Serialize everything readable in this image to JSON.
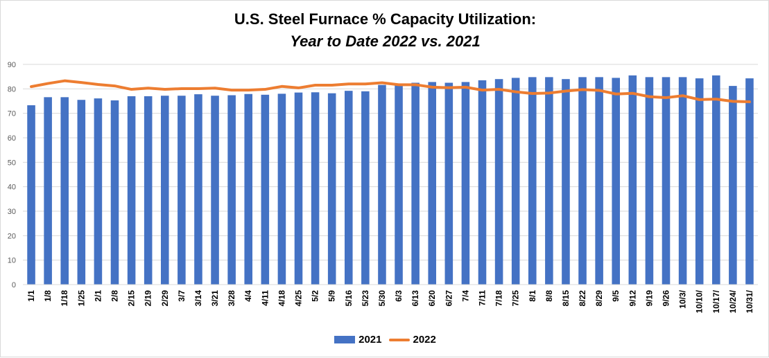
{
  "chart_data": {
    "type": "bar",
    "title": "U.S. Steel Furnace % Capacity Utilization:",
    "subtitle": "Year to Date 2022 vs. 2021",
    "xlabel": "",
    "ylabel": "",
    "ylim": [
      0,
      90
    ],
    "yticks": [
      "0",
      "10",
      "20",
      "30",
      "40",
      "50",
      "60",
      "70",
      "80",
      "90"
    ],
    "grid": true,
    "legend_position": "bottom",
    "categories": [
      "1/1",
      "1/8",
      "1/18",
      "1/25",
      "2/1",
      "2/8",
      "2/15",
      "2/19",
      "2/29",
      "3/7",
      "3/14",
      "3/21",
      "3/28",
      "4/4",
      "4/11",
      "4/18",
      "4/25",
      "5/2",
      "5/9",
      "5/16",
      "5/23",
      "5/30",
      "6/3",
      "6/13",
      "6/20",
      "6/27",
      "7/4",
      "7/11",
      "7/18",
      "7/25",
      "8/1",
      "8/8",
      "8/15",
      "8/22",
      "8/29",
      "9/5",
      "9/12",
      "9/19",
      "9/26",
      "10/3/",
      "10/10/",
      "10/17/",
      "10/24/",
      "10/31/"
    ],
    "series": [
      {
        "name": "2021",
        "type": "bar",
        "color": "#4472C4",
        "values": [
          73.3,
          76.6,
          76.6,
          75.5,
          76.1,
          75.3,
          77.0,
          77.0,
          77.2,
          77.2,
          77.8,
          77.2,
          77.4,
          77.9,
          77.6,
          78.0,
          78.5,
          78.6,
          78.2,
          79.2,
          79.0,
          81.6,
          81.6,
          82.5,
          82.8,
          82.5,
          82.8,
          83.5,
          84.0,
          84.5,
          84.8,
          84.8,
          84.0,
          84.8,
          84.8,
          84.5,
          85.5,
          84.8,
          84.8,
          84.8,
          84.3,
          85.5,
          81.2,
          84.3
        ]
      },
      {
        "name": "2022",
        "type": "line",
        "color": "#ED7D31",
        "values": [
          80.9,
          82.2,
          83.3,
          82.6,
          81.8,
          81.2,
          79.8,
          80.3,
          79.8,
          80.1,
          80.1,
          80.3,
          79.5,
          79.5,
          79.8,
          81.0,
          80.4,
          81.5,
          81.5,
          82.0,
          82.0,
          82.5,
          81.7,
          81.7,
          80.7,
          80.5,
          80.7,
          79.5,
          79.8,
          78.8,
          78.1,
          78.3,
          79.1,
          79.7,
          79.4,
          77.9,
          78.2,
          76.8,
          76.4,
          77.2,
          75.6,
          75.8,
          74.9,
          74.7
        ]
      }
    ]
  }
}
